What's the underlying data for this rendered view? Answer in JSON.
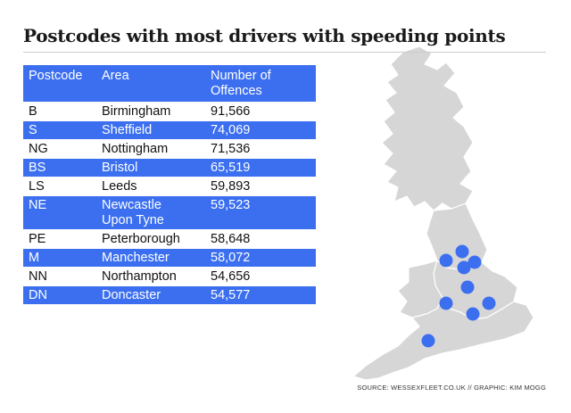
{
  "title": "Postcodes with most drivers with speeding points",
  "table": {
    "headers": [
      "Postcode",
      "Area",
      "Number of\nOffences"
    ],
    "rows": [
      {
        "postcode": "B",
        "area": "Birmingham",
        "offences": "91,566"
      },
      {
        "postcode": "S",
        "area": "Sheffield",
        "offences": "74,069"
      },
      {
        "postcode": "NG",
        "area": "Nottingham",
        "offences": "71,536"
      },
      {
        "postcode": "BS",
        "area": "Bristol",
        "offences": "65,519"
      },
      {
        "postcode": "LS",
        "area": "Leeds",
        "offences": "59,893"
      },
      {
        "postcode": "NE",
        "area": "Newcastle\nUpon Tyne",
        "offences": "59,523"
      },
      {
        "postcode": "PE",
        "area": "Peterborough",
        "offences": "58,648"
      },
      {
        "postcode": "M",
        "area": "Manchester",
        "offences": "58,072"
      },
      {
        "postcode": "NN",
        "area": "Northampton",
        "offences": "54,656"
      },
      {
        "postcode": "DN",
        "area": "Doncaster",
        "offences": "54,577"
      }
    ]
  },
  "source": "SOURCE: WESSEXFLEET.CO.UK // GRAPHIC: KIM MOGG",
  "colors": {
    "accent": "#3b6ff0",
    "map_land": "#d4d4d4",
    "marker": "#3b6ff0"
  },
  "map": {
    "marker_count": 10
  }
}
